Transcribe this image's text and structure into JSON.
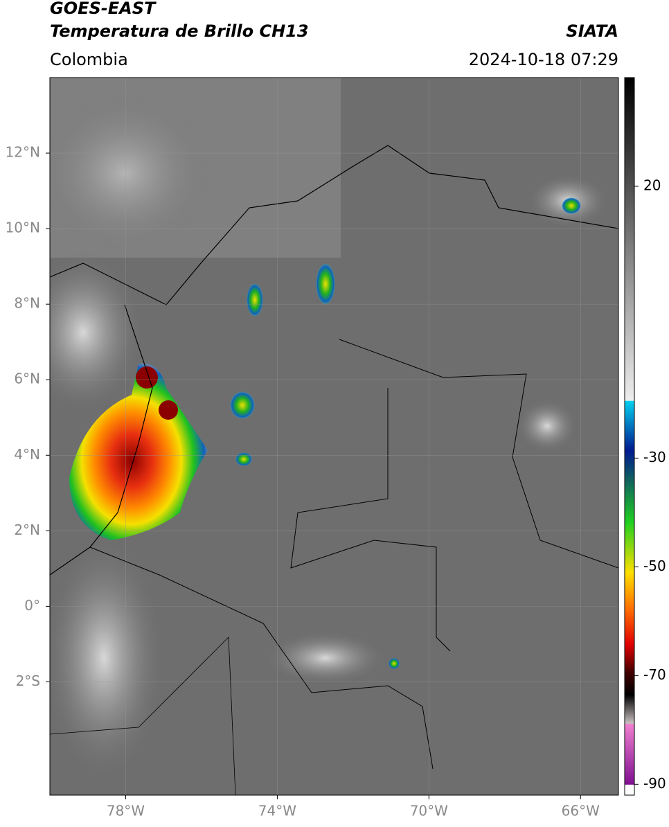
{
  "header": {
    "title": "GOES-EAST",
    "subtitle": "Temperatura de Brillo CH13",
    "source": "SIATA",
    "region": "Colombia",
    "datetime": "2024-10-18 07:29"
  },
  "map": {
    "xlim": [
      -80,
      -65
    ],
    "ylim": [
      -5,
      14
    ],
    "xticks": [
      {
        "value": -78,
        "label": "78°W"
      },
      {
        "value": -74,
        "label": "74°W"
      },
      {
        "value": -70,
        "label": "70°W"
      },
      {
        "value": -66,
        "label": "66°W"
      }
    ],
    "yticks": [
      {
        "value": 12,
        "label": "12°N"
      },
      {
        "value": 10,
        "label": "10°N"
      },
      {
        "value": 8,
        "label": "8°N"
      },
      {
        "value": 6,
        "label": "6°N"
      },
      {
        "value": 4,
        "label": "4°N"
      },
      {
        "value": 2,
        "label": "2°N"
      },
      {
        "value": 0,
        "label": "0°"
      },
      {
        "value": -2,
        "label": "2°S"
      }
    ]
  },
  "colorbar": {
    "lim": [
      -92,
      40
    ],
    "ticks": [
      20,
      -30,
      -50,
      -70,
      -90
    ]
  }
}
